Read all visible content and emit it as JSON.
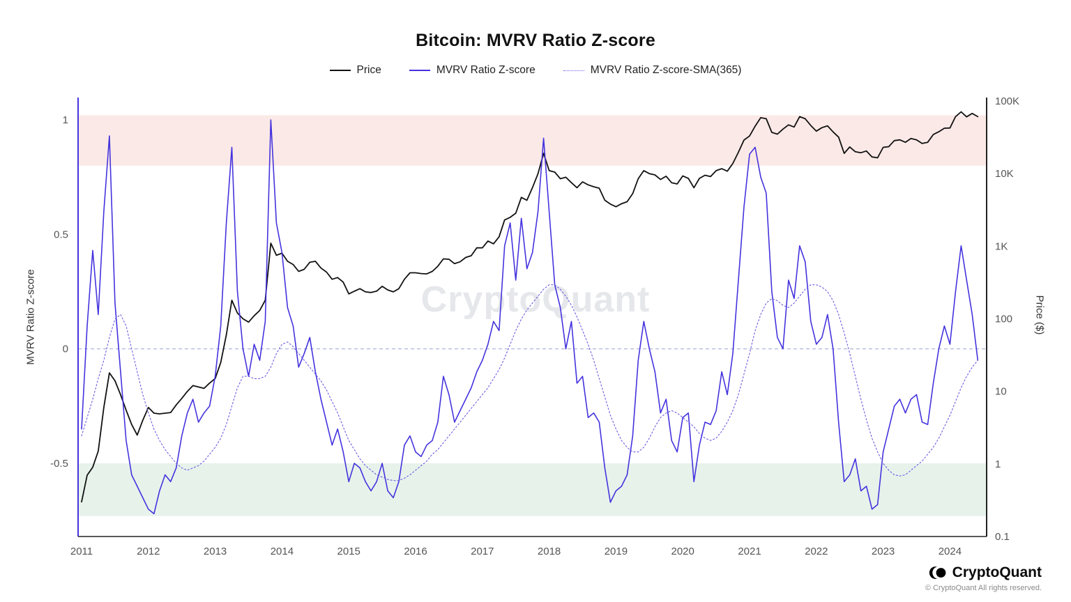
{
  "title": "Bitcoin: MVRV Ratio Z-score",
  "legend": [
    {
      "label": "Price",
      "color": "#111111",
      "style": "solid-thick"
    },
    {
      "label": "MVRV Ratio Z-score",
      "color": "#4433dd",
      "style": "solid"
    },
    {
      "label": "MVRV Ratio Z-score-SMA(365)",
      "color": "#6a5ce0",
      "style": "dotted"
    }
  ],
  "axes": {
    "left": {
      "title": "MVRV Ratio Z-score",
      "ticks": [
        {
          "label": "1",
          "value": 1
        },
        {
          "label": "0.5",
          "value": 0.5
        },
        {
          "label": "0",
          "value": 0
        },
        {
          "label": "-0.5",
          "value": -0.5
        }
      ]
    },
    "right": {
      "title": "Price ($)",
      "ticks": [
        {
          "label": "100K",
          "value": 100000
        },
        {
          "label": "10K",
          "value": 10000
        },
        {
          "label": "1K",
          "value": 1000
        },
        {
          "label": "100",
          "value": 100
        },
        {
          "label": "10",
          "value": 10
        },
        {
          "label": "1",
          "value": 1
        },
        {
          "label": "0.1",
          "value": 0.1
        }
      ]
    },
    "x": {
      "ticks": [
        "2011",
        "2012",
        "2013",
        "2014",
        "2015",
        "2016",
        "2017",
        "2018",
        "2019",
        "2020",
        "2021",
        "2022",
        "2023",
        "2024"
      ]
    }
  },
  "bands": [
    {
      "name": "overbought-zone",
      "from": 0.8,
      "to": 1.02,
      "color": "#fbe9e7"
    },
    {
      "name": "oversold-zone",
      "from": -0.73,
      "to": -0.5,
      "color": "#e7f2eb"
    }
  ],
  "reference_line": {
    "value": 0,
    "color": "#9aa3d0"
  },
  "watermark": "CryptoQuant",
  "footer": {
    "brand": "CryptoQuant",
    "copyright": "© CryptoQuant All rights reserved."
  },
  "chart_data": {
    "type": "line",
    "title": "Bitcoin: MVRV Ratio Z-score",
    "xlabel": "",
    "ylabel_left": "MVRV Ratio Z-score",
    "ylabel_right": "Price ($)",
    "left_ylim": [
      -0.82,
      1.1
    ],
    "right_ylim_log10": [
      -1,
      5
    ],
    "x_range": [
      2011,
      2024.55
    ],
    "grid": "zero-line-only",
    "legend_position": "top-center",
    "x": [
      2011.0,
      2011.083,
      2011.167,
      2011.25,
      2011.333,
      2011.417,
      2011.5,
      2011.583,
      2011.667,
      2011.75,
      2011.833,
      2011.917,
      2012.0,
      2012.083,
      2012.167,
      2012.25,
      2012.333,
      2012.417,
      2012.5,
      2012.583,
      2012.667,
      2012.75,
      2012.833,
      2012.917,
      2013.0,
      2013.083,
      2013.167,
      2013.25,
      2013.333,
      2013.417,
      2013.5,
      2013.583,
      2013.667,
      2013.75,
      2013.833,
      2013.917,
      2014.0,
      2014.083,
      2014.167,
      2014.25,
      2014.333,
      2014.417,
      2014.5,
      2014.583,
      2014.667,
      2014.75,
      2014.833,
      2014.917,
      2015.0,
      2015.083,
      2015.167,
      2015.25,
      2015.333,
      2015.417,
      2015.5,
      2015.583,
      2015.667,
      2015.75,
      2015.833,
      2015.917,
      2016.0,
      2016.083,
      2016.167,
      2016.25,
      2016.333,
      2016.417,
      2016.5,
      2016.583,
      2016.667,
      2016.75,
      2016.833,
      2016.917,
      2017.0,
      2017.083,
      2017.167,
      2017.25,
      2017.333,
      2017.417,
      2017.5,
      2017.583,
      2017.667,
      2017.75,
      2017.833,
      2017.917,
      2018.0,
      2018.083,
      2018.167,
      2018.25,
      2018.333,
      2018.417,
      2018.5,
      2018.583,
      2018.667,
      2018.75,
      2018.833,
      2018.917,
      2019.0,
      2019.083,
      2019.167,
      2019.25,
      2019.333,
      2019.417,
      2019.5,
      2019.583,
      2019.667,
      2019.75,
      2019.833,
      2019.917,
      2020.0,
      2020.083,
      2020.167,
      2020.25,
      2020.333,
      2020.417,
      2020.5,
      2020.583,
      2020.667,
      2020.75,
      2020.833,
      2020.917,
      2021.0,
      2021.083,
      2021.167,
      2021.25,
      2021.333,
      2021.417,
      2021.5,
      2021.583,
      2021.667,
      2021.75,
      2021.833,
      2021.917,
      2022.0,
      2022.083,
      2022.167,
      2022.25,
      2022.333,
      2022.417,
      2022.5,
      2022.583,
      2022.667,
      2022.75,
      2022.833,
      2022.917,
      2023.0,
      2023.083,
      2023.167,
      2023.25,
      2023.333,
      2023.417,
      2023.5,
      2023.583,
      2023.667,
      2023.75,
      2023.833,
      2023.917,
      2024.0,
      2024.083,
      2024.167,
      2024.25,
      2024.333,
      2024.417
    ],
    "series": [
      {
        "name": "Price",
        "axis": "right",
        "units": "USD",
        "color": "#111111",
        "style": "solid",
        "values": [
          0.3,
          0.7,
          0.9,
          1.5,
          6,
          18,
          14,
          9,
          5.5,
          3.5,
          2.5,
          4,
          6,
          5,
          4.9,
          5,
          5.1,
          6.5,
          8,
          10,
          12,
          11.5,
          11,
          13,
          15,
          25,
          60,
          180,
          120,
          100,
          90,
          110,
          130,
          180,
          1100,
          750,
          800,
          620,
          560,
          450,
          480,
          600,
          620,
          500,
          440,
          350,
          370,
          320,
          220,
          240,
          260,
          235,
          230,
          240,
          280,
          250,
          235,
          260,
          350,
          430,
          430,
          420,
          415,
          450,
          530,
          670,
          660,
          575,
          610,
          700,
          740,
          950,
          950,
          1180,
          1080,
          1350,
          2300,
          2500,
          2850,
          4700,
          4300,
          6400,
          10000,
          19000,
          11000,
          10500,
          8500,
          8900,
          7500,
          6400,
          7700,
          7000,
          6600,
          6300,
          4300,
          3800,
          3500,
          3850,
          4100,
          5300,
          8500,
          11000,
          10000,
          9600,
          8300,
          9200,
          7500,
          7200,
          9300,
          8600,
          6400,
          8600,
          9500,
          9100,
          11000,
          11700,
          10800,
          13800,
          19700,
          29000,
          33000,
          45000,
          59000,
          57000,
          37000,
          35000,
          41000,
          47000,
          43800,
          61000,
          57000,
          46000,
          38500,
          43000,
          45500,
          37600,
          31800,
          19000,
          23300,
          20000,
          19400,
          20500,
          17000,
          16500,
          23000,
          23500,
          28500,
          29200,
          27000,
          30500,
          29200,
          26000,
          27000,
          34500,
          37700,
          42200,
          42500,
          61000,
          71000,
          60600,
          67500,
          61000
        ]
      },
      {
        "name": "MVRV Ratio Z-score",
        "axis": "left",
        "color": "#4433dd",
        "style": "solid",
        "values": [
          -0.35,
          0.1,
          0.43,
          0.15,
          0.6,
          0.93,
          0.2,
          -0.1,
          -0.4,
          -0.55,
          -0.6,
          -0.65,
          -0.7,
          -0.72,
          -0.62,
          -0.55,
          -0.58,
          -0.52,
          -0.38,
          -0.28,
          -0.22,
          -0.32,
          -0.28,
          -0.25,
          -0.12,
          0.1,
          0.55,
          0.88,
          0.25,
          0,
          -0.12,
          0.02,
          -0.05,
          0.12,
          1.0,
          0.55,
          0.42,
          0.18,
          0.1,
          -0.08,
          -0.02,
          0.05,
          -0.1,
          -0.22,
          -0.32,
          -0.42,
          -0.35,
          -0.45,
          -0.58,
          -0.5,
          -0.52,
          -0.58,
          -0.62,
          -0.58,
          -0.5,
          -0.62,
          -0.65,
          -0.58,
          -0.42,
          -0.38,
          -0.45,
          -0.47,
          -0.42,
          -0.4,
          -0.32,
          -0.12,
          -0.2,
          -0.32,
          -0.27,
          -0.22,
          -0.17,
          -0.1,
          -0.05,
          0.02,
          0.12,
          0.08,
          0.45,
          0.55,
          0.3,
          0.57,
          0.35,
          0.42,
          0.6,
          0.92,
          0.6,
          0.28,
          0.18,
          0,
          0.12,
          -0.15,
          -0.12,
          -0.3,
          -0.28,
          -0.32,
          -0.52,
          -0.67,
          -0.62,
          -0.6,
          -0.55,
          -0.38,
          -0.05,
          0.12,
          0,
          -0.1,
          -0.28,
          -0.22,
          -0.4,
          -0.45,
          -0.3,
          -0.28,
          -0.58,
          -0.42,
          -0.32,
          -0.33,
          -0.27,
          -0.1,
          -0.2,
          -0.02,
          0.3,
          0.62,
          0.85,
          0.88,
          0.75,
          0.68,
          0.25,
          0.05,
          0,
          0.3,
          0.22,
          0.45,
          0.38,
          0.12,
          0.02,
          0.05,
          0.15,
          0,
          -0.32,
          -0.58,
          -0.55,
          -0.48,
          -0.62,
          -0.6,
          -0.7,
          -0.68,
          -0.45,
          -0.35,
          -0.25,
          -0.22,
          -0.28,
          -0.22,
          -0.2,
          -0.32,
          -0.33,
          -0.15,
          0,
          0.1,
          0.02,
          0.25,
          0.45,
          0.3,
          0.15,
          -0.05
        ]
      },
      {
        "name": "MVRV Ratio Z-score-SMA(365)",
        "axis": "left",
        "color": "#6a5ce0",
        "style": "dotted",
        "values": [
          -0.38,
          -0.3,
          -0.22,
          -0.13,
          -0.05,
          0.05,
          0.13,
          0.15,
          0.1,
          0,
          -0.1,
          -0.2,
          -0.28,
          -0.35,
          -0.4,
          -0.44,
          -0.47,
          -0.5,
          -0.52,
          -0.53,
          -0.52,
          -0.51,
          -0.49,
          -0.46,
          -0.43,
          -0.39,
          -0.33,
          -0.25,
          -0.17,
          -0.12,
          -0.12,
          -0.13,
          -0.13,
          -0.12,
          -0.08,
          -0.02,
          0.02,
          0.03,
          0.01,
          -0.02,
          -0.05,
          -0.08,
          -0.11,
          -0.14,
          -0.18,
          -0.23,
          -0.28,
          -0.34,
          -0.4,
          -0.44,
          -0.48,
          -0.51,
          -0.53,
          -0.55,
          -0.56,
          -0.57,
          -0.575,
          -0.575,
          -0.565,
          -0.55,
          -0.53,
          -0.51,
          -0.49,
          -0.46,
          -0.44,
          -0.41,
          -0.38,
          -0.35,
          -0.32,
          -0.29,
          -0.26,
          -0.23,
          -0.2,
          -0.17,
          -0.13,
          -0.09,
          -0.04,
          0.02,
          0.08,
          0.13,
          0.17,
          0.2,
          0.23,
          0.26,
          0.28,
          0.28,
          0.26,
          0.23,
          0.19,
          0.14,
          0.08,
          0.02,
          -0.05,
          -0.13,
          -0.21,
          -0.29,
          -0.35,
          -0.4,
          -0.43,
          -0.45,
          -0.45,
          -0.43,
          -0.39,
          -0.34,
          -0.3,
          -0.28,
          -0.27,
          -0.28,
          -0.3,
          -0.32,
          -0.34,
          -0.37,
          -0.39,
          -0.4,
          -0.39,
          -0.36,
          -0.32,
          -0.27,
          -0.2,
          -0.11,
          -0.02,
          0.08,
          0.15,
          0.2,
          0.22,
          0.21,
          0.19,
          0.18,
          0.2,
          0.23,
          0.26,
          0.28,
          0.28,
          0.27,
          0.25,
          0.21,
          0.15,
          0.07,
          -0.02,
          -0.12,
          -0.22,
          -0.31,
          -0.39,
          -0.45,
          -0.5,
          -0.53,
          -0.55,
          -0.555,
          -0.55,
          -0.53,
          -0.51,
          -0.49,
          -0.46,
          -0.43,
          -0.39,
          -0.34,
          -0.29,
          -0.23,
          -0.17,
          -0.12,
          -0.08,
          -0.05
        ]
      }
    ]
  }
}
